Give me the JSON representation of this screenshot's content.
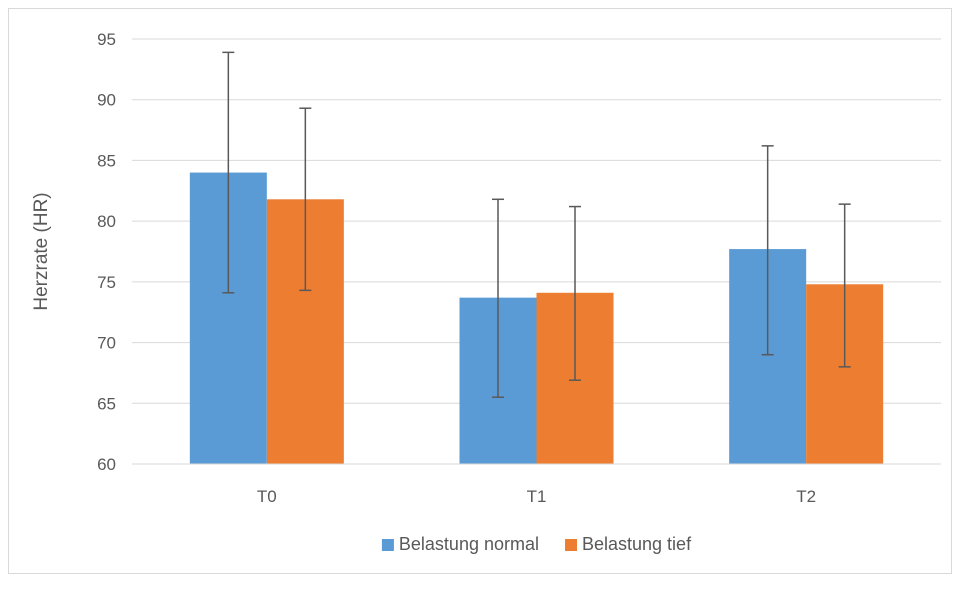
{
  "chart_data": {
    "type": "bar",
    "categories": [
      "T0",
      "T1",
      "T2"
    ],
    "series": [
      {
        "name": "Belastung normal",
        "color": "#5b9bd5",
        "values": [
          84.0,
          73.7,
          77.7
        ],
        "error_low": [
          74.1,
          65.5,
          69.0
        ],
        "error_high": [
          93.9,
          81.8,
          86.2
        ]
      },
      {
        "name": "Belastung tief",
        "color": "#ed7d31",
        "values": [
          81.8,
          74.1,
          74.8
        ],
        "error_low": [
          74.3,
          66.9,
          68.0
        ],
        "error_high": [
          89.3,
          81.2,
          81.4
        ]
      }
    ],
    "title": "",
    "xlabel": "",
    "ylabel": "Herzrate (HR)",
    "ylim": [
      60,
      95
    ],
    "yticks": [
      60,
      65,
      70,
      75,
      80,
      85,
      90,
      95
    ],
    "grid": true,
    "legend_position": "bottom"
  }
}
